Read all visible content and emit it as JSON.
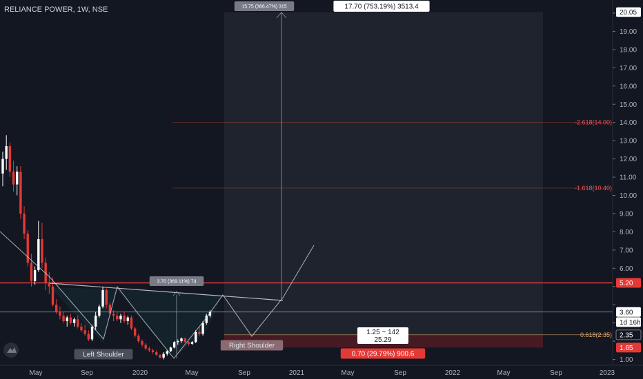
{
  "header": {
    "title": "RELIANCE POWER, 1W, NSE"
  },
  "colors": {
    "background": "#131722",
    "up": "#ffffff",
    "down": "#e53935",
    "resistance": "#e53935",
    "fib": "#ef5350",
    "fib618": "#e0a86b",
    "projection_box": "#2a2e39",
    "stop_zone": "#4a1a22",
    "axis_text": "#b2b5be"
  },
  "chart_data": {
    "type": "candlestick",
    "title": "RELIANCE POWER, 1W, NSE",
    "ylim": [
      0.9,
      20.4
    ],
    "y_ticks": [
      "1.00",
      "2.00",
      "3.00",
      "4.00",
      "5.00",
      "6.00",
      "7.00",
      "8.00",
      "9.00",
      "10.00",
      "11.00",
      "12.00",
      "13.00",
      "14.00",
      "15.00",
      "16.00",
      "17.00",
      "18.00",
      "19.00",
      "20.00"
    ],
    "x_ticks": [
      "May",
      "Sep",
      "2020",
      "May",
      "Sep",
      "2021",
      "May",
      "Sep",
      "2022",
      "May",
      "Sep",
      "2023"
    ],
    "candles": [
      {
        "o": 11.2,
        "h": 12.4,
        "l": 10.5,
        "c": 12.0
      },
      {
        "o": 12.0,
        "h": 13.3,
        "l": 11.4,
        "c": 12.7
      },
      {
        "o": 12.7,
        "h": 12.9,
        "l": 11.0,
        "c": 11.3
      },
      {
        "o": 11.3,
        "h": 11.9,
        "l": 10.2,
        "c": 10.6
      },
      {
        "o": 10.6,
        "h": 11.6,
        "l": 10.0,
        "c": 11.3
      },
      {
        "o": 11.3,
        "h": 11.6,
        "l": 8.7,
        "c": 9.0
      },
      {
        "o": 9.0,
        "h": 9.4,
        "l": 7.6,
        "c": 7.9
      },
      {
        "o": 7.9,
        "h": 8.1,
        "l": 6.1,
        "c": 6.3
      },
      {
        "o": 6.3,
        "h": 6.8,
        "l": 5.0,
        "c": 5.3
      },
      {
        "o": 5.3,
        "h": 6.1,
        "l": 5.1,
        "c": 5.9
      },
      {
        "o": 5.9,
        "h": 8.6,
        "l": 5.8,
        "c": 7.6
      },
      {
        "o": 7.6,
        "h": 8.5,
        "l": 6.0,
        "c": 6.3
      },
      {
        "o": 6.3,
        "h": 6.6,
        "l": 4.8,
        "c": 5.2
      },
      {
        "o": 5.2,
        "h": 5.8,
        "l": 4.6,
        "c": 5.0
      },
      {
        "o": 5.0,
        "h": 5.5,
        "l": 3.9,
        "c": 4.0
      },
      {
        "o": 4.0,
        "h": 4.3,
        "l": 3.5,
        "c": 3.6
      },
      {
        "o": 3.6,
        "h": 3.9,
        "l": 3.2,
        "c": 3.4
      },
      {
        "o": 3.4,
        "h": 3.6,
        "l": 3.0,
        "c": 3.1
      },
      {
        "o": 3.1,
        "h": 3.4,
        "l": 2.8,
        "c": 3.3
      },
      {
        "o": 3.3,
        "h": 3.5,
        "l": 2.9,
        "c": 3.0
      },
      {
        "o": 3.0,
        "h": 3.3,
        "l": 2.8,
        "c": 3.2
      },
      {
        "o": 3.2,
        "h": 3.4,
        "l": 2.7,
        "c": 2.8
      },
      {
        "o": 2.8,
        "h": 3.0,
        "l": 2.5,
        "c": 2.6
      },
      {
        "o": 2.6,
        "h": 2.9,
        "l": 2.3,
        "c": 2.4
      },
      {
        "o": 2.4,
        "h": 2.6,
        "l": 2.0,
        "c": 2.1
      },
      {
        "o": 2.1,
        "h": 2.9,
        "l": 2.0,
        "c": 2.8
      },
      {
        "o": 2.8,
        "h": 3.6,
        "l": 2.6,
        "c": 3.4
      },
      {
        "o": 3.4,
        "h": 4.0,
        "l": 3.3,
        "c": 3.9
      },
      {
        "o": 3.9,
        "h": 5.0,
        "l": 3.8,
        "c": 4.8
      },
      {
        "o": 4.8,
        "h": 4.9,
        "l": 3.8,
        "c": 4.0
      },
      {
        "o": 4.0,
        "h": 4.1,
        "l": 3.4,
        "c": 3.5
      },
      {
        "o": 3.5,
        "h": 3.7,
        "l": 3.1,
        "c": 3.4
      },
      {
        "o": 3.4,
        "h": 3.6,
        "l": 3.1,
        "c": 3.2
      },
      {
        "o": 3.2,
        "h": 3.5,
        "l": 3.0,
        "c": 3.4
      },
      {
        "o": 3.4,
        "h": 3.6,
        "l": 3.0,
        "c": 3.1
      },
      {
        "o": 3.1,
        "h": 3.4,
        "l": 2.9,
        "c": 3.3
      },
      {
        "o": 3.3,
        "h": 3.4,
        "l": 2.6,
        "c": 2.7
      },
      {
        "o": 2.7,
        "h": 2.8,
        "l": 2.2,
        "c": 2.3
      },
      {
        "o": 2.3,
        "h": 2.4,
        "l": 1.9,
        "c": 2.0
      },
      {
        "o": 2.0,
        "h": 2.1,
        "l": 1.7,
        "c": 1.8
      },
      {
        "o": 1.8,
        "h": 1.9,
        "l": 1.5,
        "c": 1.6
      },
      {
        "o": 1.6,
        "h": 1.7,
        "l": 1.4,
        "c": 1.5
      },
      {
        "o": 1.5,
        "h": 1.6,
        "l": 1.3,
        "c": 1.4
      },
      {
        "o": 1.4,
        "h": 1.5,
        "l": 1.2,
        "c": 1.25
      },
      {
        "o": 1.25,
        "h": 1.3,
        "l": 1.05,
        "c": 1.1
      },
      {
        "o": 1.1,
        "h": 1.4,
        "l": 1.0,
        "c": 1.3
      },
      {
        "o": 1.3,
        "h": 1.5,
        "l": 1.2,
        "c": 1.45
      },
      {
        "o": 1.45,
        "h": 1.7,
        "l": 1.4,
        "c": 1.65
      },
      {
        "o": 1.65,
        "h": 2.0,
        "l": 1.6,
        "c": 1.95
      },
      {
        "o": 1.95,
        "h": 2.1,
        "l": 1.8,
        "c": 2.0
      },
      {
        "o": 2.0,
        "h": 2.2,
        "l": 1.9,
        "c": 2.15
      },
      {
        "o": 2.15,
        "h": 2.2,
        "l": 1.9,
        "c": 1.95
      },
      {
        "o": 1.95,
        "h": 2.0,
        "l": 1.75,
        "c": 1.85
      },
      {
        "o": 1.85,
        "h": 2.0,
        "l": 1.8,
        "c": 1.95
      },
      {
        "o": 1.95,
        "h": 2.6,
        "l": 1.9,
        "c": 2.5
      },
      {
        "o": 2.5,
        "h": 2.8,
        "l": 2.3,
        "c": 2.4
      },
      {
        "o": 2.4,
        "h": 3.1,
        "l": 2.3,
        "c": 3.0
      },
      {
        "o": 3.0,
        "h": 3.5,
        "l": 2.9,
        "c": 3.4
      },
      {
        "o": 3.4,
        "h": 3.7,
        "l": 3.3,
        "c": 3.6
      }
    ],
    "fib_levels": [
      {
        "label": "-2.618(14.00)",
        "value": 14.0
      },
      {
        "label": "-1.618(10.40)",
        "value": 10.4
      },
      {
        "label": "0.618(2.35)",
        "value": 2.35
      }
    ],
    "price_labels": [
      {
        "text": "20.05",
        "value": 20.05,
        "bg": "#ffffff",
        "fg": "#131722"
      },
      {
        "text": "5.20",
        "value": 5.2,
        "bg": "#e53935",
        "fg": "#ffffff"
      },
      {
        "text": "3.60",
        "value": 3.6,
        "bg": "#ffffff",
        "fg": "#131722"
      },
      {
        "text": "1d 16h",
        "value": 3.05,
        "bg": "#ffffff",
        "fg": "#131722"
      },
      {
        "text": "2.35",
        "value": 2.35,
        "bg": "#131722",
        "fg": "#ffffff"
      },
      {
        "text": "1.65",
        "value": 1.65,
        "bg": "#e53935",
        "fg": "#ffffff"
      }
    ],
    "annotations": {
      "left_shoulder": "Left Shoulder",
      "right_shoulder": "Right Shoulder",
      "target_move": "15.75 (366.47%) 315",
      "target_box": "17.70 (753.19%) 3513.4",
      "neck_move": "3.70 (369.11%) 74",
      "entry_line1": "1.25 ~ 142",
      "entry_line2": "25.29",
      "stop_box": "0.70 (29.79%) 900.6"
    }
  }
}
